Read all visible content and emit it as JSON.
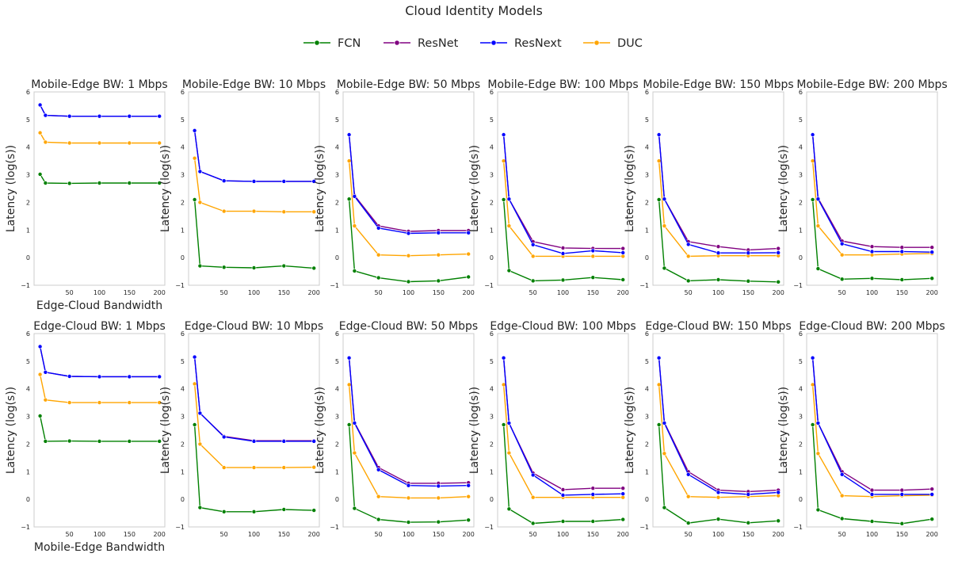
{
  "title": "Cloud Identity Models",
  "y_tick_labels": [
    "−1",
    "0",
    "1",
    "2",
    "3",
    "4",
    "5",
    "6"
  ],
  "legend": {
    "placement": "top-center",
    "entries": [
      {
        "name": "FCN",
        "color": "#008000"
      },
      {
        "name": "ResNet",
        "color": "#800080"
      },
      {
        "name": "ResNext",
        "color": "#0000ff"
      },
      {
        "name": "DUC",
        "color": "#ffa500"
      }
    ]
  },
  "chart_data": [
    {
      "type": "line",
      "title": "Mobile-Edge BW: 1 Mbps",
      "xlabel": "Edge-Cloud Bandwidth",
      "ylabel": "Latency (log(s))",
      "ylim": [
        -1,
        6
      ],
      "xlim": [
        -9,
        209
      ],
      "x": [
        1,
        10,
        50,
        100,
        150,
        200
      ],
      "xticks": [
        "50",
        "100",
        "150",
        "200"
      ],
      "grid": false,
      "series": [
        {
          "name": "FCN",
          "values": [
            3.02,
            2.7,
            2.69,
            2.7,
            2.7,
            2.7
          ]
        },
        {
          "name": "ResNet",
          "values": [
            5.53,
            5.15,
            5.12,
            5.12,
            5.12,
            5.12
          ]
        },
        {
          "name": "ResNext",
          "values": [
            5.53,
            5.15,
            5.12,
            5.12,
            5.12,
            5.12
          ]
        },
        {
          "name": "DUC",
          "values": [
            4.52,
            4.18,
            4.15,
            4.15,
            4.15,
            4.15
          ]
        }
      ]
    },
    {
      "type": "line",
      "title": "Mobile-Edge BW: 10 Mbps",
      "xlabel": "",
      "ylabel": "Latency (log(s))",
      "ylim": [
        -1,
        6
      ],
      "xlim": [
        -9,
        209
      ],
      "x": [
        1,
        10,
        50,
        100,
        150,
        200
      ],
      "xticks": [
        "50",
        "100",
        "150",
        "200"
      ],
      "grid": false,
      "series": [
        {
          "name": "FCN",
          "values": [
            2.1,
            -0.3,
            -0.35,
            -0.37,
            -0.3,
            -0.38
          ]
        },
        {
          "name": "ResNet",
          "values": [
            4.6,
            3.12,
            2.78,
            2.76,
            2.76,
            2.76
          ]
        },
        {
          "name": "ResNext",
          "values": [
            4.6,
            3.12,
            2.78,
            2.76,
            2.76,
            2.76
          ]
        },
        {
          "name": "DUC",
          "values": [
            3.6,
            2.0,
            1.68,
            1.68,
            1.66,
            1.66
          ]
        }
      ]
    },
    {
      "type": "line",
      "title": "Mobile-Edge BW: 50 Mbps",
      "xlabel": "",
      "ylabel": "Latency (log(s))",
      "ylim": [
        -1,
        6
      ],
      "xlim": [
        -9,
        209
      ],
      "x": [
        1,
        10,
        50,
        100,
        150,
        200
      ],
      "xticks": [
        "50",
        "100",
        "150",
        "200"
      ],
      "grid": false,
      "series": [
        {
          "name": "FCN",
          "values": [
            2.12,
            -0.48,
            -0.73,
            -0.87,
            -0.84,
            -0.7
          ]
        },
        {
          "name": "ResNet",
          "values": [
            4.45,
            2.25,
            1.15,
            0.95,
            0.98,
            0.98
          ]
        },
        {
          "name": "ResNext",
          "values": [
            4.45,
            2.22,
            1.07,
            0.88,
            0.9,
            0.9
          ]
        },
        {
          "name": "DUC",
          "values": [
            3.5,
            1.15,
            0.1,
            0.07,
            0.1,
            0.13
          ]
        }
      ]
    },
    {
      "type": "line",
      "title": "Mobile-Edge BW: 100 Mbps",
      "xlabel": "",
      "ylabel": "Latency (log(s))",
      "ylim": [
        -1,
        6
      ],
      "xlim": [
        -9,
        209
      ],
      "x": [
        1,
        10,
        50,
        100,
        150,
        200
      ],
      "xticks": [
        "50",
        "100",
        "150",
        "200"
      ],
      "grid": false,
      "series": [
        {
          "name": "FCN",
          "values": [
            2.1,
            -0.47,
            -0.84,
            -0.81,
            -0.72,
            -0.8
          ]
        },
        {
          "name": "ResNet",
          "values": [
            4.45,
            2.12,
            0.58,
            0.35,
            0.33,
            0.33
          ]
        },
        {
          "name": "ResNext",
          "values": [
            4.45,
            2.12,
            0.47,
            0.15,
            0.25,
            0.18
          ]
        },
        {
          "name": "DUC",
          "values": [
            3.5,
            1.15,
            0.05,
            0.05,
            0.05,
            0.05
          ]
        }
      ]
    },
    {
      "type": "line",
      "title": "Mobile-Edge BW: 150 Mbps",
      "xlabel": "",
      "ylabel": "Latency (log(s))",
      "ylim": [
        -1,
        6
      ],
      "xlim": [
        -9,
        209
      ],
      "x": [
        1,
        10,
        50,
        100,
        150,
        200
      ],
      "xticks": [
        "50",
        "100",
        "150",
        "200"
      ],
      "grid": false,
      "series": [
        {
          "name": "FCN",
          "values": [
            2.1,
            -0.38,
            -0.84,
            -0.8,
            -0.85,
            -0.88
          ]
        },
        {
          "name": "ResNet",
          "values": [
            4.45,
            2.12,
            0.58,
            0.4,
            0.28,
            0.33
          ]
        },
        {
          "name": "ResNext",
          "values": [
            4.45,
            2.12,
            0.48,
            0.17,
            0.17,
            0.18
          ]
        },
        {
          "name": "DUC",
          "values": [
            3.5,
            1.15,
            0.05,
            0.07,
            0.07,
            0.07
          ]
        }
      ]
    },
    {
      "type": "line",
      "title": "Mobile-Edge BW: 200 Mbps",
      "xlabel": "",
      "ylabel": "Latency (log(s))",
      "ylim": [
        -1,
        6
      ],
      "xlim": [
        -9,
        209
      ],
      "x": [
        1,
        10,
        50,
        100,
        150,
        200
      ],
      "xticks": [
        "50",
        "100",
        "150",
        "200"
      ],
      "grid": false,
      "series": [
        {
          "name": "FCN",
          "values": [
            2.1,
            -0.4,
            -0.78,
            -0.75,
            -0.8,
            -0.75
          ]
        },
        {
          "name": "ResNet",
          "values": [
            4.45,
            2.15,
            0.6,
            0.4,
            0.37,
            0.37
          ]
        },
        {
          "name": "ResNext",
          "values": [
            4.45,
            2.12,
            0.5,
            0.22,
            0.22,
            0.2
          ]
        },
        {
          "name": "DUC",
          "values": [
            3.5,
            1.15,
            0.1,
            0.1,
            0.13,
            0.15
          ]
        }
      ]
    },
    {
      "type": "line",
      "title": "Edge-Cloud BW: 1 Mbps",
      "xlabel": "Mobile-Edge Bandwidth",
      "ylabel": "Latency (log(s))",
      "ylim": [
        -1,
        6
      ],
      "xlim": [
        -9,
        209
      ],
      "x": [
        1,
        10,
        50,
        100,
        150,
        200
      ],
      "xticks": [
        "50",
        "100",
        "150",
        "200"
      ],
      "grid": false,
      "series": [
        {
          "name": "FCN",
          "values": [
            3.02,
            2.1,
            2.11,
            2.1,
            2.1,
            2.1
          ]
        },
        {
          "name": "ResNet",
          "values": [
            5.53,
            4.6,
            4.45,
            4.44,
            4.44,
            4.44
          ]
        },
        {
          "name": "ResNext",
          "values": [
            5.53,
            4.6,
            4.45,
            4.44,
            4.44,
            4.44
          ]
        },
        {
          "name": "DUC",
          "values": [
            4.52,
            3.6,
            3.5,
            3.5,
            3.5,
            3.5
          ]
        }
      ]
    },
    {
      "type": "line",
      "title": "Edge-Cloud BW: 10 Mbps",
      "xlabel": "",
      "ylabel": "Latency (log(s))",
      "ylim": [
        -1,
        6
      ],
      "xlim": [
        -9,
        209
      ],
      "x": [
        1,
        10,
        50,
        100,
        150,
        200
      ],
      "xticks": [
        "50",
        "100",
        "150",
        "200"
      ],
      "grid": false,
      "series": [
        {
          "name": "FCN",
          "values": [
            2.7,
            -0.3,
            -0.45,
            -0.45,
            -0.37,
            -0.4
          ]
        },
        {
          "name": "ResNet",
          "values": [
            5.15,
            3.12,
            2.28,
            2.12,
            2.12,
            2.12
          ]
        },
        {
          "name": "ResNext",
          "values": [
            5.15,
            3.12,
            2.26,
            2.1,
            2.1,
            2.1
          ]
        },
        {
          "name": "DUC",
          "values": [
            4.18,
            2.0,
            1.15,
            1.15,
            1.15,
            1.16
          ]
        }
      ]
    },
    {
      "type": "line",
      "title": "Edge-Cloud BW: 50 Mbps",
      "xlabel": "",
      "ylabel": "Latency (log(s))",
      "ylim": [
        -1,
        6
      ],
      "xlim": [
        -9,
        209
      ],
      "x": [
        1,
        10,
        50,
        100,
        150,
        200
      ],
      "xticks": [
        "50",
        "100",
        "150",
        "200"
      ],
      "grid": false,
      "series": [
        {
          "name": "FCN",
          "values": [
            2.7,
            -0.33,
            -0.73,
            -0.83,
            -0.82,
            -0.75
          ]
        },
        {
          "name": "ResNet",
          "values": [
            5.12,
            2.78,
            1.15,
            0.58,
            0.58,
            0.6
          ]
        },
        {
          "name": "ResNext",
          "values": [
            5.12,
            2.76,
            1.07,
            0.5,
            0.48,
            0.5
          ]
        },
        {
          "name": "DUC",
          "values": [
            4.15,
            1.68,
            0.1,
            0.05,
            0.05,
            0.1
          ]
        }
      ]
    },
    {
      "type": "line",
      "title": "Edge-Cloud BW: 100 Mbps",
      "xlabel": "",
      "ylabel": "Latency (log(s))",
      "ylim": [
        -1,
        6
      ],
      "xlim": [
        -9,
        209
      ],
      "x": [
        1,
        10,
        50,
        100,
        150,
        200
      ],
      "xticks": [
        "50",
        "100",
        "150",
        "200"
      ],
      "grid": false,
      "series": [
        {
          "name": "FCN",
          "values": [
            2.7,
            -0.35,
            -0.87,
            -0.8,
            -0.8,
            -0.73
          ]
        },
        {
          "name": "ResNet",
          "values": [
            5.12,
            2.76,
            0.95,
            0.35,
            0.4,
            0.4
          ]
        },
        {
          "name": "ResNext",
          "values": [
            5.12,
            2.76,
            0.88,
            0.15,
            0.18,
            0.2
          ]
        },
        {
          "name": "DUC",
          "values": [
            4.15,
            1.68,
            0.07,
            0.07,
            0.07,
            0.07
          ]
        }
      ]
    },
    {
      "type": "line",
      "title": "Edge-Cloud BW: 150 Mbps",
      "xlabel": "",
      "ylabel": "Latency (log(s))",
      "ylim": [
        -1,
        6
      ],
      "xlim": [
        -9,
        209
      ],
      "x": [
        1,
        10,
        50,
        100,
        150,
        200
      ],
      "xticks": [
        "50",
        "100",
        "150",
        "200"
      ],
      "grid": false,
      "series": [
        {
          "name": "FCN",
          "values": [
            2.7,
            -0.3,
            -0.86,
            -0.72,
            -0.85,
            -0.78
          ]
        },
        {
          "name": "ResNet",
          "values": [
            5.12,
            2.78,
            1.0,
            0.33,
            0.28,
            0.33
          ]
        },
        {
          "name": "ResNext",
          "values": [
            5.12,
            2.76,
            0.9,
            0.25,
            0.18,
            0.25
          ]
        },
        {
          "name": "DUC",
          "values": [
            4.15,
            1.66,
            0.1,
            0.07,
            0.1,
            0.13
          ]
        }
      ]
    },
    {
      "type": "line",
      "title": "Edge-Cloud BW: 200 Mbps",
      "xlabel": "",
      "ylabel": "Latency (log(s))",
      "ylim": [
        -1,
        6
      ],
      "xlim": [
        -9,
        209
      ],
      "x": [
        1,
        10,
        50,
        100,
        150,
        200
      ],
      "xticks": [
        "50",
        "100",
        "150",
        "200"
      ],
      "grid": false,
      "series": [
        {
          "name": "FCN",
          "values": [
            2.7,
            -0.38,
            -0.7,
            -0.8,
            -0.88,
            -0.72
          ]
        },
        {
          "name": "ResNet",
          "values": [
            5.12,
            2.76,
            1.0,
            0.33,
            0.33,
            0.37
          ]
        },
        {
          "name": "ResNext",
          "values": [
            5.12,
            2.76,
            0.9,
            0.18,
            0.18,
            0.18
          ]
        },
        {
          "name": "DUC",
          "values": [
            4.15,
            1.66,
            0.13,
            0.1,
            0.13,
            0.15
          ]
        }
      ]
    }
  ]
}
